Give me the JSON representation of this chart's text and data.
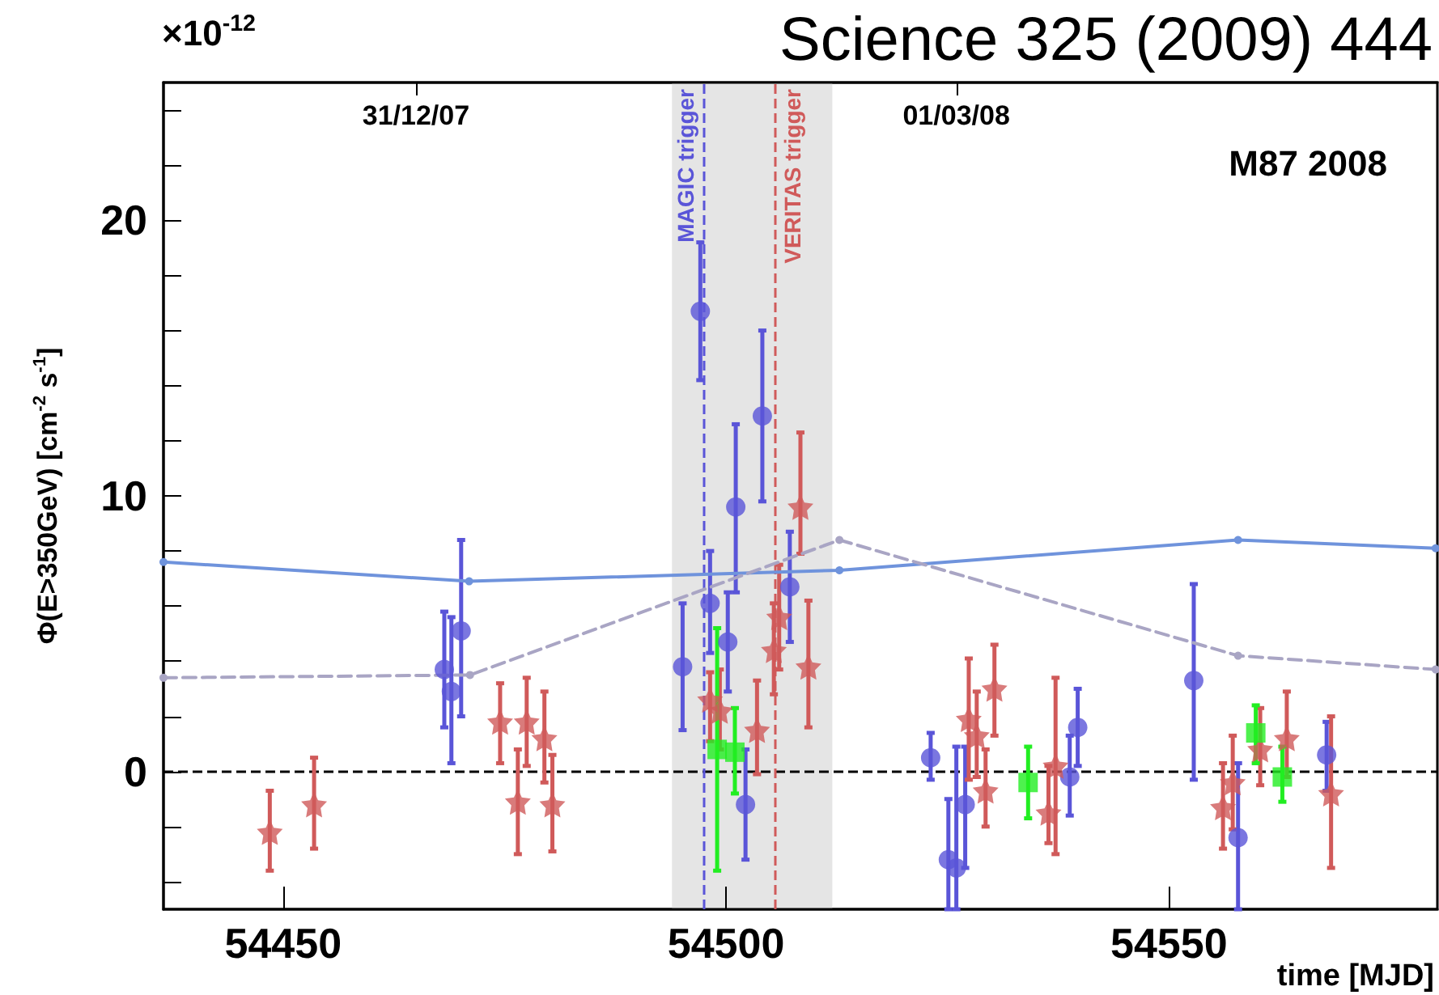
{
  "chart_data": {
    "type": "scatter",
    "ylabel": "Φ(E>350GeV) [cm$^{-2}$ s$^{-1}$]",
    "xlabel": "time [MJD]",
    "annotations": [
      "×10$^{-12}$",
      "Science 325 (2009) 444",
      "M87 2008"
    ],
    "series": [
      {
        "type": "scatter",
        "marker": "circle",
        "color": "#5a55d8",
        "x": [
          54468.2,
          54469.0,
          54470.1,
          54495.1,
          54497.1,
          54498.2,
          54500.2,
          54501.1,
          54502.2,
          54504.1,
          54507.2,
          54523.1,
          54525.1,
          54526.0,
          54527.0,
          54538.8,
          54539.7,
          54552.8,
          54557.8,
          54567.8
        ],
        "values": [
          3.7,
          2.9,
          5.1,
          3.8,
          16.7,
          6.1,
          4.7,
          9.6,
          -1.2,
          12.9,
          6.7,
          0.5,
          -3.2,
          -3.5,
          -1.2,
          -0.2,
          1.6,
          3.3,
          -2.4,
          0.6
        ],
        "errors": [
          [
            1.6,
            5.8
          ],
          [
            0.3,
            5.6
          ],
          [
            2.0,
            8.4
          ],
          [
            1.5,
            6.1
          ],
          [
            14.2,
            19.2
          ],
          [
            4.3,
            8.0
          ],
          [
            2.9,
            6.5
          ],
          [
            6.5,
            12.6
          ],
          [
            -3.2,
            0.8
          ],
          [
            9.8,
            16.0
          ],
          [
            4.7,
            8.7
          ],
          [
            -0.3,
            1.4
          ],
          [
            -5,
            -1.0
          ],
          [
            -5,
            0.9
          ],
          [
            -3.5,
            0.9
          ],
          [
            -1.6,
            1.3
          ],
          [
            0.2,
            3.0
          ],
          [
            -0.3,
            6.8
          ],
          [
            -5,
            0.3
          ],
          [
            -0.7,
            1.8
          ]
        ]
      },
      {
        "type": "scatter",
        "marker": "star",
        "color": "#d05a5a",
        "x": [
          54448.5,
          54453.5,
          54474.5,
          54476.5,
          54477.5,
          54479.5,
          54480.4,
          54498.2,
          54499.3,
          54503.5,
          54505.4,
          54506.0,
          54508.4,
          54509.3,
          54527.4,
          54528.3,
          54529.3,
          54530.3,
          54536.4,
          54537.2,
          54556.1,
          54557.2,
          54560.3,
          54563.3,
          54568.3
        ],
        "values": [
          -2.2,
          -1.2,
          1.8,
          -1.1,
          1.8,
          1.2,
          -1.2,
          2.6,
          2.2,
          1.5,
          4.4,
          5.6,
          9.6,
          3.8,
          1.9,
          1.3,
          -0.7,
          3.0,
          -1.5,
          0.2,
          -1.3,
          -0.4,
          0.8,
          1.2,
          -0.8
        ],
        "errors": [
          [
            -3.6,
            -0.7
          ],
          [
            -2.8,
            0.5
          ],
          [
            0.3,
            3.2
          ],
          [
            -3.0,
            0.8
          ],
          [
            0.2,
            3.4
          ],
          [
            -0.4,
            2.9
          ],
          [
            -2.9,
            0.6
          ],
          [
            1.1,
            3.6
          ],
          [
            0.8,
            3.7
          ],
          [
            -0.1,
            3.3
          ],
          [
            2.8,
            6.1
          ],
          [
            3.7,
            7.5
          ],
          [
            7.9,
            12.3
          ],
          [
            1.6,
            6.2
          ],
          [
            -0.3,
            4.1
          ],
          [
            -0.2,
            2.9
          ],
          [
            -2.0,
            0.8
          ],
          [
            1.3,
            4.6
          ],
          [
            -2.6,
            0.2
          ],
          [
            -3.0,
            3.4
          ],
          [
            -2.8,
            0.3
          ],
          [
            -2.1,
            1.3
          ],
          [
            -0.5,
            2.3
          ],
          [
            -0.2,
            2.9
          ],
          [
            -3.5,
            2.0
          ]
        ]
      },
      {
        "type": "scatter",
        "marker": "square",
        "color": "#22ee22",
        "x": [
          54499.0,
          54501.0,
          54534.1,
          54559.8,
          54562.8
        ],
        "values": [
          0.8,
          0.7,
          -0.4,
          1.4,
          -0.2
        ],
        "errors": [
          [
            -3.6,
            5.2
          ],
          [
            -0.8,
            2.3
          ],
          [
            -1.7,
            0.9
          ],
          [
            0.3,
            2.4
          ],
          [
            -1.1,
            0.9
          ]
        ]
      },
      {
        "type": "line",
        "marker": "circle",
        "line_style": "solid",
        "color": "#6f93dc",
        "x": [
          54436.5,
          54471.0,
          54512.8,
          54557.8,
          54580.1
        ],
        "values": [
          7.6,
          6.9,
          7.3,
          8.4,
          8.1
        ]
      },
      {
        "type": "line",
        "marker": "circle",
        "line_style": "dashed",
        "color": "#a9a5c4",
        "x": [
          54436.5,
          54471.1,
          54512.8,
          54557.8,
          54580.1
        ],
        "values": [
          3.4,
          3.5,
          8.4,
          4.2,
          3.7
        ]
      }
    ],
    "xlim": [
      54436.5,
      54580.3
    ],
    "xticks": [
      54450,
      54500,
      54550
    ],
    "x2lim": [
      "2007-12-02T12:00",
      "2008-04-24T07:12"
    ],
    "x2ticks": [
      {
        "value": "2007-12-31",
        "label": "31/12/07"
      },
      {
        "value": "2008-03-01",
        "label": "01/03/08"
      }
    ],
    "ylim": [
      -5,
      25
    ],
    "yticks": [
      {
        "value": -4,
        "label": null
      },
      {
        "value": -2,
        "label": null
      },
      0,
      {
        "value": 2,
        "label": null
      },
      {
        "value": 4,
        "label": null
      },
      {
        "value": 6,
        "label": null
      },
      {
        "value": 8,
        "label": null
      },
      10,
      {
        "value": 12,
        "label": null
      },
      {
        "value": 14,
        "label": null
      },
      {
        "value": 16,
        "label": null
      },
      {
        "value": 18,
        "label": null
      },
      20,
      {
        "value": 22,
        "label": null
      },
      {
        "value": 24,
        "label": null
      }
    ],
    "ref_lines": [
      {
        "axis": "y",
        "value": 0,
        "label": null,
        "color": "#000000",
        "line_style": "dashed"
      },
      {
        "axis": "x",
        "value": 54497.4,
        "label": "MAGIC trigger",
        "color": "#5a55d8",
        "line_style": "dashed"
      },
      {
        "axis": "x",
        "value": 54505.5,
        "label": "VERITAS trigger",
        "color": "#d05a5a",
        "line_style": "dashed"
      }
    ],
    "bands": [
      {
        "axis": "x",
        "from": 54493.9,
        "to": 54512.0,
        "label": null,
        "color": "#e5e5e5"
      }
    ],
    "grid": false,
    "legend": false
  }
}
